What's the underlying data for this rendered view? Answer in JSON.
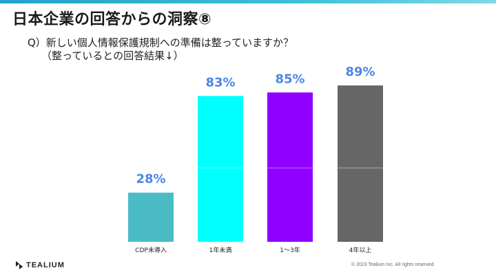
{
  "slide": {
    "title": "日本企業の回答からの洞察⑧",
    "question": "Q）新しい個人情報保護規制への準備は整っていますか？",
    "subquestion": "（整っているとの回答結果↓）"
  },
  "chart_data": {
    "type": "bar",
    "categories": [
      "CDP未導入",
      "1年未満",
      "1～3年",
      "4年以上"
    ],
    "values": [
      28,
      83,
      85,
      89
    ],
    "value_labels": [
      "28%",
      "83%",
      "85%",
      "89%"
    ],
    "colors": [
      "#4bbcc5",
      "#00ffff",
      "#8f00ff",
      "#666666"
    ],
    "label_color": "#4a86e8",
    "ylim": [
      0,
      100
    ],
    "grid": false,
    "legend": "none"
  },
  "footer": {
    "logo_text": "TEALIUM",
    "copyright": "© 2023 Tealium Inc. All rights reserved."
  }
}
